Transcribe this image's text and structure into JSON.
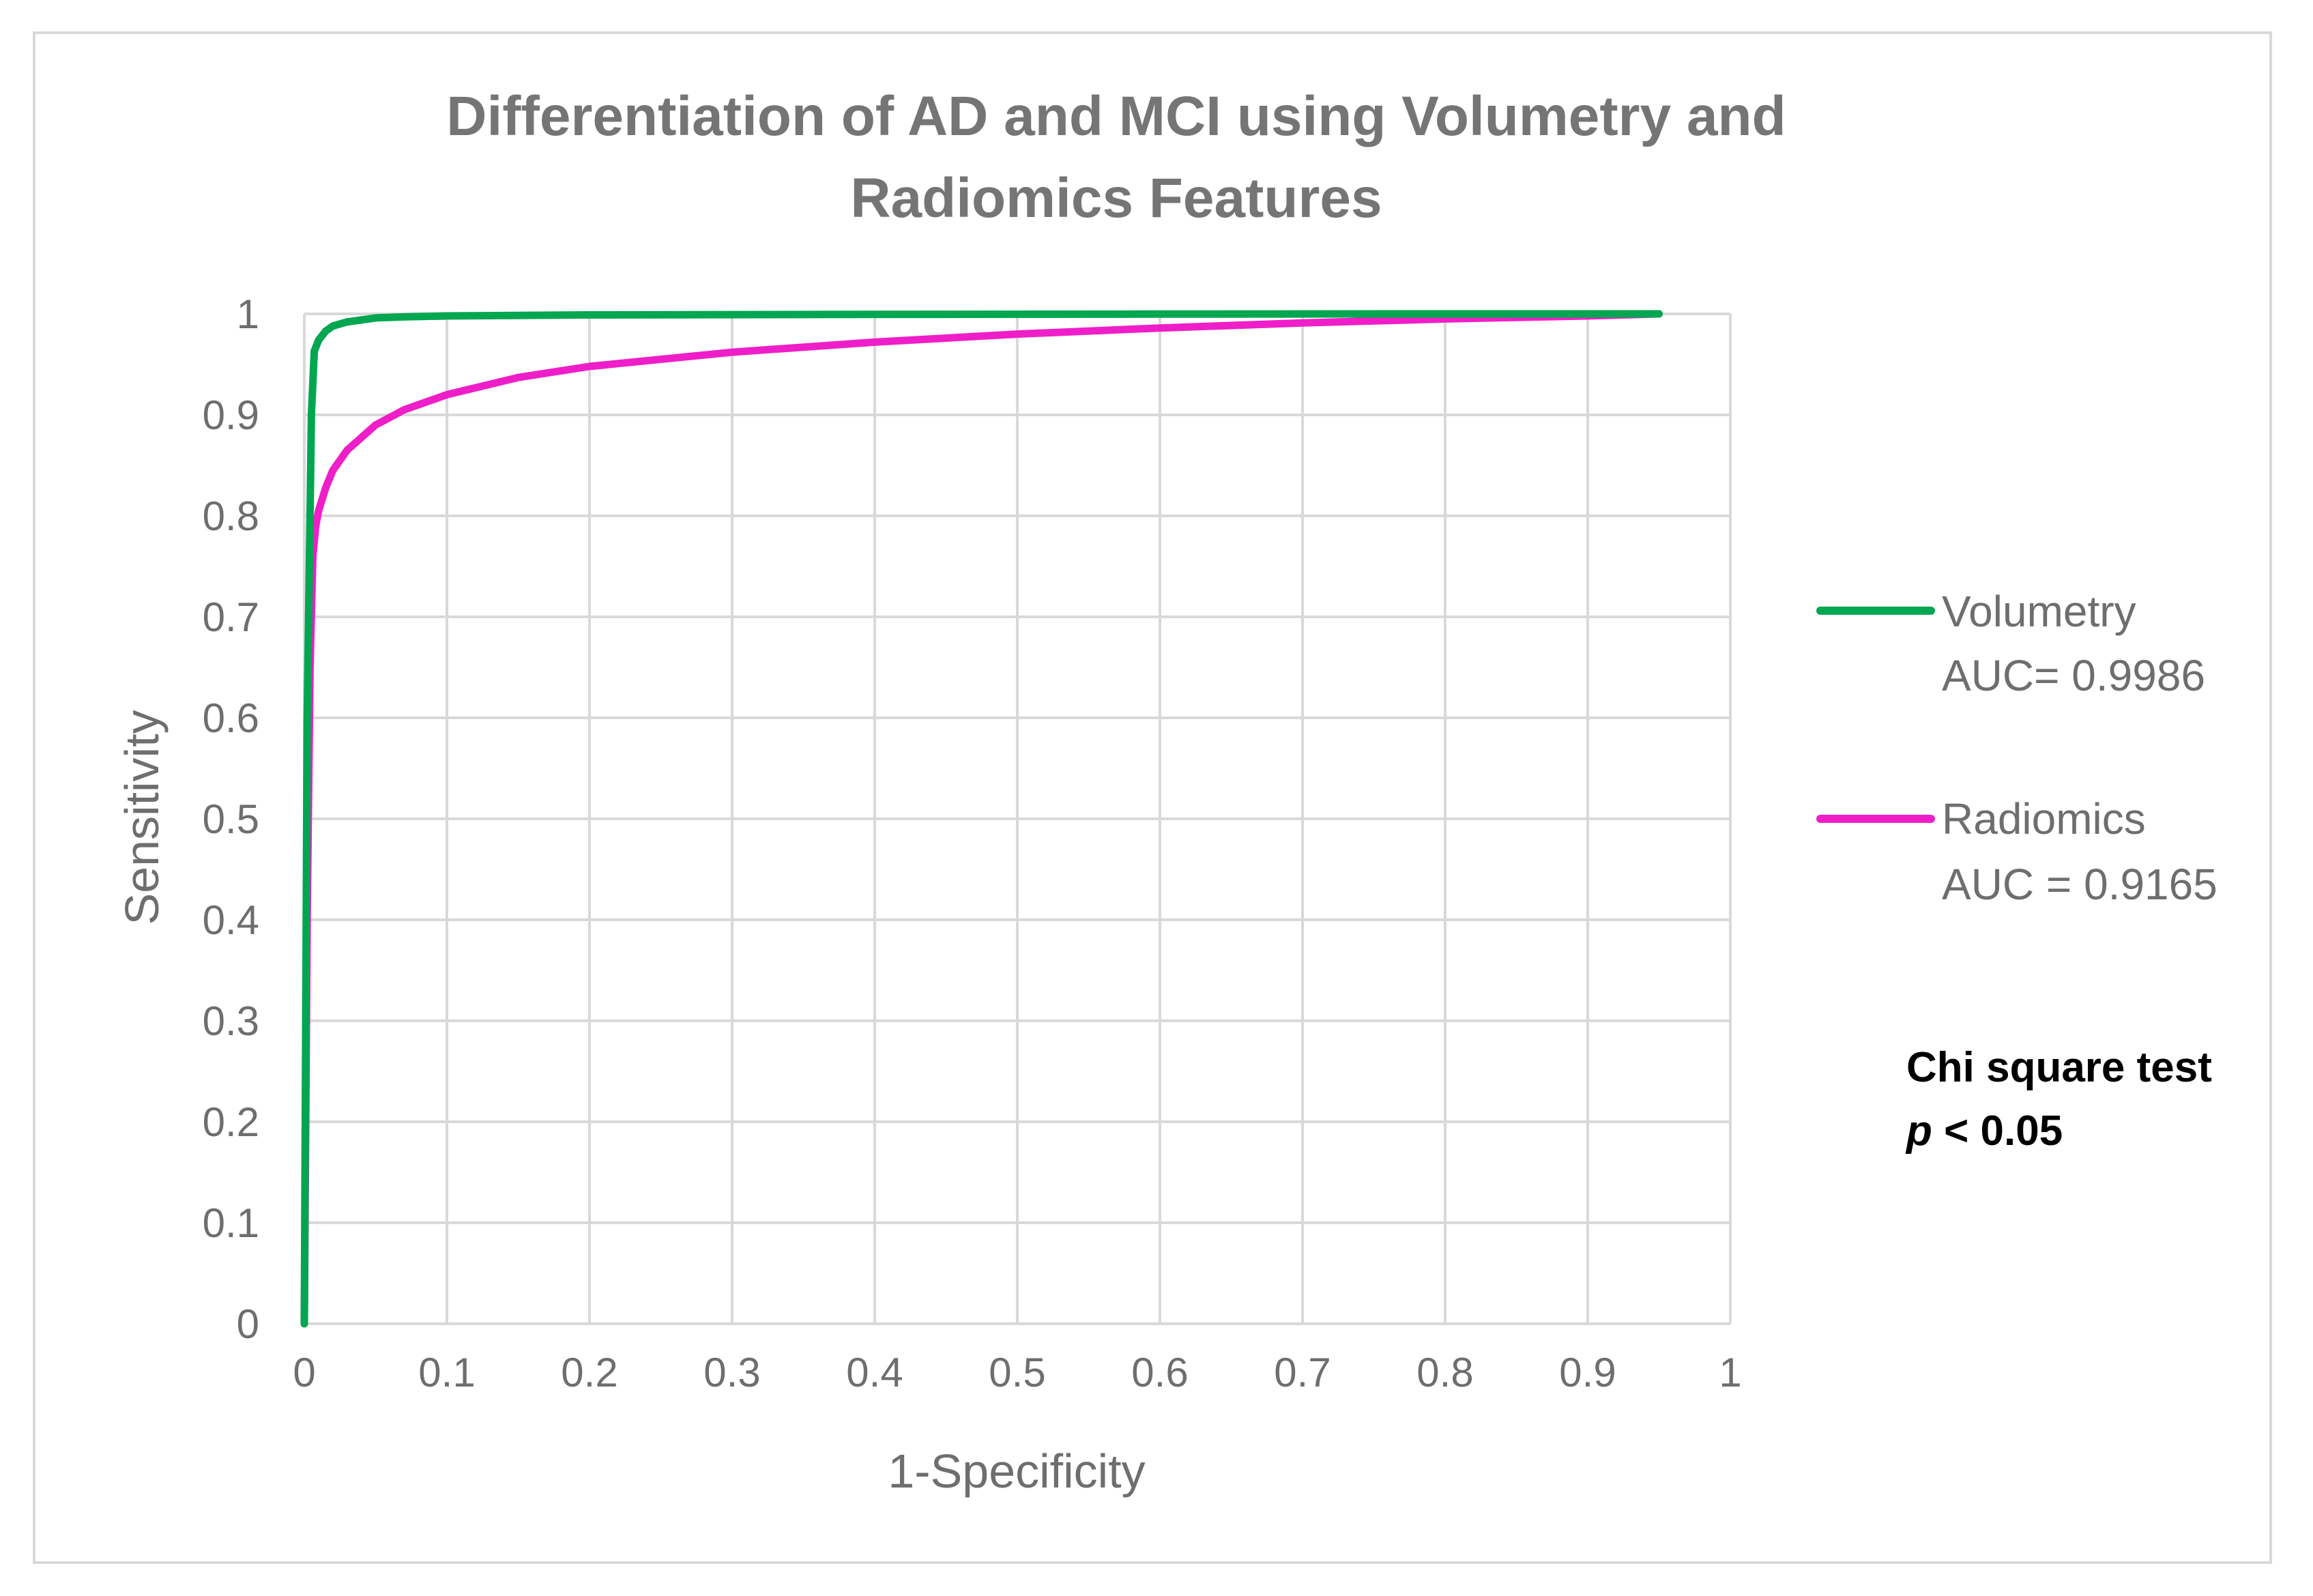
{
  "chart_data": {
    "type": "line",
    "title_lines": [
      "Differentiation of AD and MCI using Volumetry and",
      "Radiomics Features"
    ],
    "xlabel": "1-Specificity",
    "ylabel": "Sensitivity",
    "xlim": [
      0,
      1
    ],
    "ylim": [
      0,
      1
    ],
    "grid": true,
    "legend_position": "right",
    "x_ticks": [
      "0",
      "0.1",
      "0.2",
      "0.3",
      "0.4",
      "0.5",
      "0.6",
      "0.7",
      "0.8",
      "0.9",
      "1"
    ],
    "y_ticks": [
      "0",
      "0.1",
      "0.2",
      "0.3",
      "0.4",
      "0.5",
      "0.6",
      "0.7",
      "0.8",
      "0.9",
      "1"
    ],
    "series": [
      {
        "name": "Volumetry",
        "legend_line1": "Volumetry",
        "legend_line2": "AUC= 0.9986",
        "color": "#00a650",
        "x": [
          0,
          0.002,
          0.004,
          0.005,
          0.007,
          0.01,
          0.015,
          0.02,
          0.03,
          0.04,
          0.05,
          0.07,
          0.1,
          0.2,
          0.4,
          0.6,
          0.8,
          0.95
        ],
        "y": [
          0,
          0.6,
          0.8,
          0.9,
          0.963,
          0.974,
          0.983,
          0.988,
          0.992,
          0.994,
          0.996,
          0.997,
          0.998,
          0.999,
          0.9995,
          0.9998,
          1.0,
          1.0
        ]
      },
      {
        "name": "Radiomics",
        "legend_line1": "Radiomics",
        "legend_line2": "AUC = 0.9165",
        "color": "#ee1fc8",
        "x": [
          0,
          0.002,
          0.004,
          0.006,
          0.008,
          0.01,
          0.015,
          0.02,
          0.03,
          0.05,
          0.07,
          0.1,
          0.15,
          0.2,
          0.3,
          0.4,
          0.5,
          0.6,
          0.7,
          0.8,
          0.9,
          0.95
        ],
        "y": [
          0,
          0.4,
          0.65,
          0.76,
          0.79,
          0.805,
          0.828,
          0.845,
          0.865,
          0.89,
          0.905,
          0.92,
          0.937,
          0.948,
          0.962,
          0.972,
          0.98,
          0.986,
          0.991,
          0.995,
          0.998,
          1.0
        ]
      }
    ],
    "annotation": {
      "line1": "Chi square test",
      "line2_italic": "p",
      "line2_rest": " < 0.05"
    }
  }
}
